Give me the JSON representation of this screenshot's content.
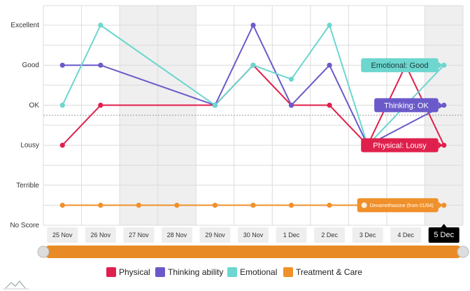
{
  "chart_data": {
    "type": "line",
    "y_levels": [
      "No Score",
      "Terrible",
      "Lousy",
      "OK",
      "Good",
      "Excellent"
    ],
    "categories": [
      "25 Nov",
      "26 Nov",
      "27 Nov",
      "28 Nov",
      "29 Nov",
      "30 Nov",
      "1 Dec",
      "2 Dec",
      "3 Dec",
      "4 Dec",
      "5 Dec"
    ],
    "selected_category": "5 Dec",
    "shaded_categories": [
      "27 Nov",
      "28 Nov",
      "5 Dec"
    ],
    "series": [
      {
        "name": "Physical",
        "color": "#e0204c",
        "values": [
          "Lousy",
          "OK",
          null,
          null,
          "OK",
          "Good",
          "OK",
          "OK",
          "Lousy",
          "Good",
          "Lousy"
        ]
      },
      {
        "name": "Thinking ability",
        "color": "#6a5ac9",
        "values": [
          "Good",
          "Good",
          null,
          null,
          "OK",
          "Excellent",
          "OK",
          "Good",
          "Lousy",
          null,
          "OK"
        ]
      },
      {
        "name": "Emotional",
        "color": "#6cd6cf",
        "values": [
          "OK",
          "Excellent",
          null,
          null,
          "OK",
          "Good",
          3.65,
          "Excellent",
          "Lousy",
          null,
          "Good"
        ]
      },
      {
        "name": "Treatment & Care",
        "color": "#f0902a",
        "values": [
          0.5,
          0.5,
          0.5,
          0.5,
          0.5,
          0.5,
          0.5,
          0.5,
          0.5,
          0.5,
          0.5
        ]
      }
    ],
    "reference_level": 2.75,
    "tooltips": [
      {
        "series": "Emotional",
        "text": "Emotional: Good"
      },
      {
        "series": "Thinking ability",
        "text": "Thinking: OK"
      },
      {
        "series": "Physical",
        "text": "Physical: Lousy"
      },
      {
        "series": "Treatment & Care",
        "text": "Dexamethasone (from 01/04)"
      }
    ],
    "legend": [
      "Physical",
      "Thinking ability",
      "Emotional",
      "Treatment & Care"
    ],
    "legend_position": "bottom",
    "grid": true
  }
}
